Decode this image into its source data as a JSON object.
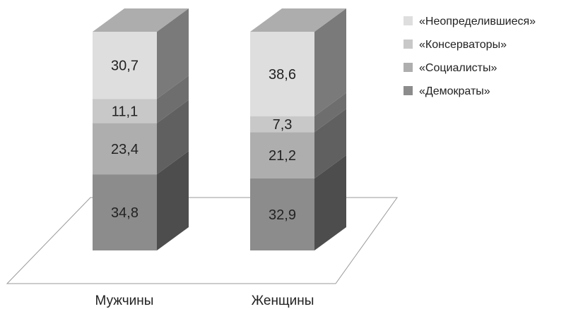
{
  "chart_data": {
    "type": "bar",
    "stacked": true,
    "three_d": true,
    "categories": [
      "Мужчины",
      "Женщины"
    ],
    "series": [
      {
        "name": "«Демократы»",
        "values": [
          34.8,
          32.9
        ],
        "labels": [
          "34,8",
          "32,9"
        ],
        "color": "#8c8c8c"
      },
      {
        "name": "«Социалисты»",
        "values": [
          23.4,
          21.2
        ],
        "labels": [
          "23,4",
          "21,2"
        ],
        "color": "#aeaeae"
      },
      {
        "name": "«Консерваторы»",
        "values": [
          11.1,
          7.3
        ],
        "labels": [
          "11,1",
          "7,3"
        ],
        "color": "#c8c8c8"
      },
      {
        "name": "«Неопределившиеся»",
        "values": [
          30.7,
          38.6
        ],
        "labels": [
          "30,7",
          "38,6"
        ],
        "color": "#dedede"
      }
    ],
    "legend_order": [
      "«Неопределившиеся»",
      "«Консерваторы»",
      "«Социалисты»",
      "«Демократы»"
    ],
    "legend_position": "top-right",
    "grid": false,
    "ylim": [
      0,
      100
    ]
  }
}
